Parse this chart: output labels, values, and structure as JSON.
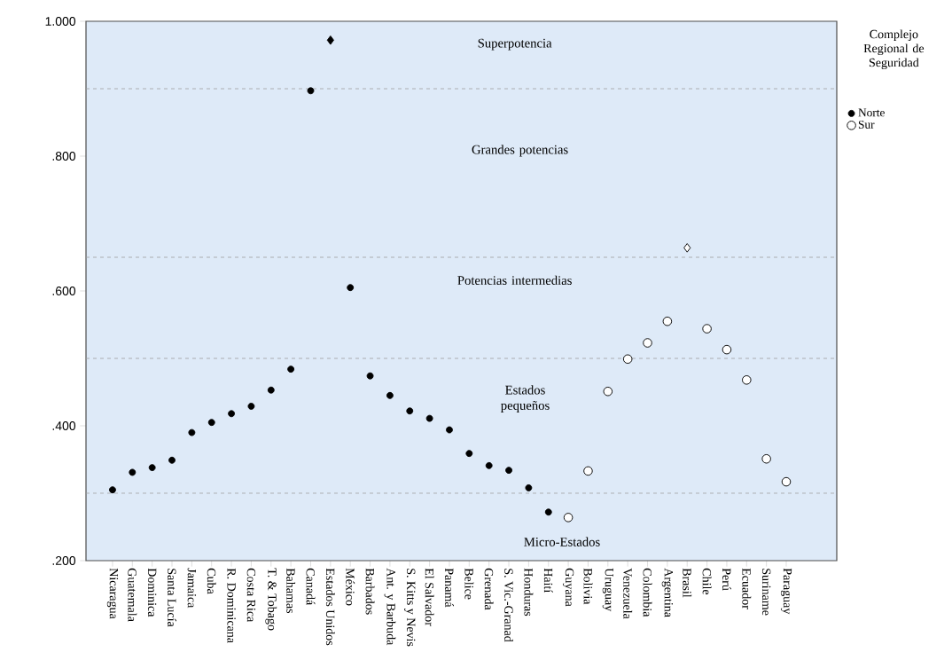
{
  "chart_data": {
    "type": "scatter",
    "categories": [
      "Nicaragua",
      "Guatemala",
      "Dominica",
      "Santa Lucía",
      "Jamaica",
      "Cuba",
      "R. Dominicana",
      "Costa Rica",
      "T. & Tobago",
      "Bahamas",
      "Canadá",
      "Estados Unidos",
      "México",
      "Barbados",
      "Ant. y Barbuda",
      "S. Kitts y Nevis",
      "El Salvador",
      "Panamá",
      "Belice",
      "Grenada",
      "S. Vic.-Granad",
      "Honduras",
      "Haití",
      "Guyana",
      "Bolivia",
      "Uruguay",
      "Venezuela",
      "Colombia",
      "Argentina",
      "Brasil",
      "Chile",
      "Perú",
      "Ecuador",
      "Suriname",
      "Paraguay"
    ],
    "series": [
      {
        "name": "Norte",
        "color": "#000000",
        "marker": "circle",
        "values": [
          0.305,
          0.331,
          0.338,
          0.349,
          0.39,
          0.405,
          0.418,
          0.429,
          0.453,
          0.484,
          0.897,
          null,
          0.605,
          0.474,
          0.445,
          0.422,
          0.411,
          0.394,
          0.359,
          0.341,
          0.334,
          0.308,
          0.272,
          null,
          null,
          null,
          null,
          null,
          null,
          null,
          null,
          null,
          null,
          null,
          null
        ]
      },
      {
        "color": "#000000",
        "marker": "diamond",
        "values": [
          null,
          null,
          null,
          null,
          null,
          null,
          null,
          null,
          null,
          null,
          null,
          0.972,
          null,
          null,
          null,
          null,
          null,
          null,
          null,
          null,
          null,
          null,
          null,
          null,
          null,
          null,
          null,
          null,
          null,
          null,
          null,
          null,
          null,
          null,
          null
        ]
      },
      {
        "name": "Sur",
        "color": "#ffffff",
        "marker": "circle",
        "values": [
          null,
          null,
          null,
          null,
          null,
          null,
          null,
          null,
          null,
          null,
          null,
          null,
          null,
          null,
          null,
          null,
          null,
          null,
          null,
          null,
          null,
          null,
          null,
          0.264,
          0.333,
          0.451,
          0.499,
          0.523,
          0.555,
          null,
          0.544,
          0.513,
          0.468,
          0.351,
          0.317
        ]
      },
      {
        "color": "#ffffff",
        "marker": "diamond",
        "values": [
          null,
          null,
          null,
          null,
          null,
          null,
          null,
          null,
          null,
          null,
          null,
          null,
          null,
          null,
          null,
          null,
          null,
          null,
          null,
          null,
          null,
          null,
          null,
          null,
          null,
          null,
          null,
          null,
          null,
          0.664,
          null,
          null,
          null,
          null,
          null
        ]
      }
    ],
    "ylim": [
      0.2,
      1.0
    ],
    "yticks": [
      {
        "value": 0.2,
        "label": ".200"
      },
      {
        "value": 0.4,
        "label": ".400"
      },
      {
        "value": 0.6,
        "label": ".600"
      },
      {
        "value": 0.8,
        "label": ".800"
      },
      {
        "value": 1.0,
        "label": "1.000"
      }
    ],
    "ref_lines": [
      {
        "axis": "y",
        "value": 0.9,
        "color": "#a0a0a0",
        "line_style": "dashed"
      },
      {
        "axis": "y",
        "value": 0.65,
        "color": "#a0a0a0",
        "line_style": "dashed"
      },
      {
        "axis": "y",
        "value": 0.5,
        "color": "#a0a0a0",
        "line_style": "dashed"
      },
      {
        "axis": "y",
        "value": 0.3,
        "color": "#a0a0a0",
        "line_style": "dashed"
      }
    ],
    "annotations": [
      "Superpotencia",
      "Grandes potencias",
      "Potencias intermedias",
      "Estados pequeños",
      "Micro-Estados"
    ],
    "legend_title": "Complejo Regional de Seguridad",
    "legend": "right"
  }
}
